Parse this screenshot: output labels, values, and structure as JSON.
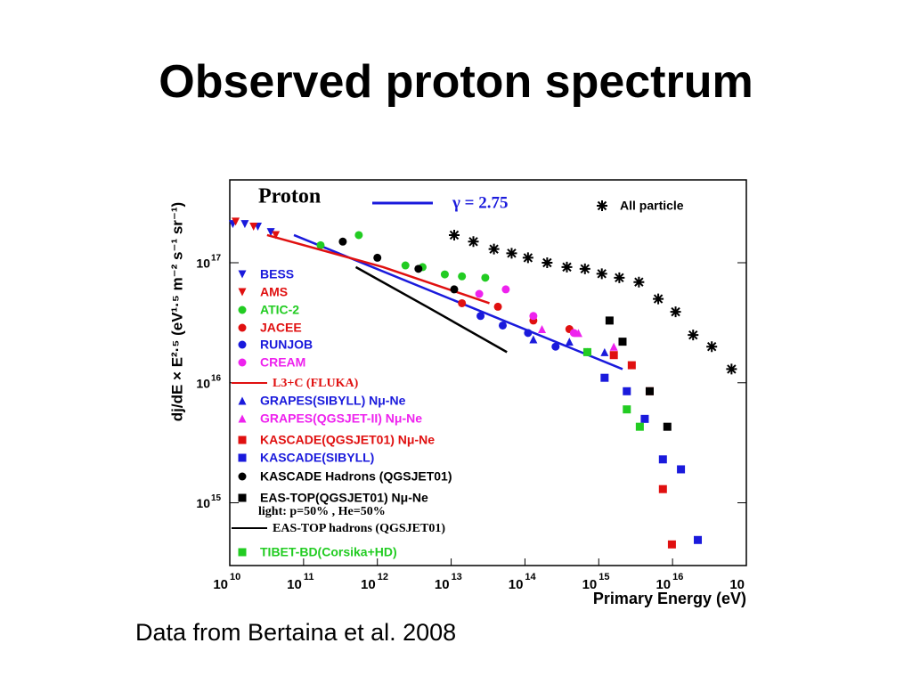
{
  "title": "Observed proton spectrum",
  "caption": "Data from Bertaina et al. 2008",
  "chart_data": {
    "type": "scatter",
    "panel_title": "Proton",
    "xlabel": "Primary Energy (eV)",
    "ylabel": "dj/dE × E²·⁵ (eV¹·⁵ m⁻² s⁻¹ sr⁻¹)",
    "note": "light: p=50% , He=50%",
    "log_x": true,
    "log_y": true,
    "xlim": [
      10000000000.0,
      1e+17
    ],
    "ylim": [
      300000000000000.0,
      4.9e+17
    ],
    "xticks": [
      {
        "value": 10000000000.0,
        "label": "10",
        "exp": "10"
      },
      {
        "value": 100000000000.0,
        "label": "10",
        "exp": "11"
      },
      {
        "value": 1000000000000.0,
        "label": "10",
        "exp": "12"
      },
      {
        "value": 10000000000000.0,
        "label": "10",
        "exp": "13"
      },
      {
        "value": 100000000000000.0,
        "label": "10",
        "exp": "14"
      },
      {
        "value": 1000000000000000.0,
        "label": "10",
        "exp": "15"
      },
      {
        "value": 1e+16,
        "label": "10",
        "exp": "16"
      },
      {
        "value": 1e+17,
        "label": "10"
      }
    ],
    "yticks": [
      {
        "value": 1000000000000000.0,
        "label": "10",
        "exp": "15"
      },
      {
        "value": 1e+16,
        "label": "10",
        "exp": "16"
      },
      {
        "value": 1e+17,
        "label": "10",
        "exp": "17"
      }
    ],
    "series": [
      {
        "name": "γ = 2.75",
        "color": "#1a1adc",
        "marker": "line",
        "x": [
          74000000000.0,
          2100000000000000.0
        ],
        "values": [
          1.7e+17,
          1.3e+16
        ]
      },
      {
        "name": "All particle",
        "color": "#000000",
        "marker": "asterisk",
        "x": [
          11000000000000.0,
          20000000000000.0,
          38000000000000.0,
          66000000000000.0,
          110000000000000.0,
          200000000000000.0,
          370000000000000.0,
          650000000000000.0,
          1100000000000000.0,
          1900000000000000.0,
          3500000000000000.0,
          6400000000000000.0,
          1.1e+16,
          1.9e+16,
          3.4e+16,
          6.3e+16
        ],
        "values": [
          1.7e+17,
          1.5e+17,
          1.3e+17,
          1.2e+17,
          1.1e+17,
          1e+17,
          9.2e+16,
          8.9e+16,
          8.1e+16,
          7.5e+16,
          6.9e+16,
          5e+16,
          3.9e+16,
          2.5e+16,
          2e+16,
          1.3e+16
        ]
      },
      {
        "name": "BESS",
        "color": "#1a1adc",
        "marker": "triangle-down",
        "x": [
          11000000000.0,
          16000000000.0,
          24000000000.0,
          36000000000.0
        ],
        "values": [
          2.1e+17,
          2.1e+17,
          2e+17,
          1.8e+17
        ]
      },
      {
        "name": "AMS",
        "color": "#e01010",
        "marker": "triangle-down",
        "x": [
          12000000000.0,
          21000000000.0,
          42000000000.0
        ],
        "values": [
          2.2e+17,
          2e+17,
          1.7e+17
        ]
      },
      {
        "name": "ATIC-2",
        "color": "#22cc22",
        "marker": "circle",
        "x": [
          170000000000.0,
          560000000000.0,
          2400000000000.0,
          4100000000000.0,
          8200000000000.0,
          14000000000000.0,
          29000000000000.0
        ],
        "values": [
          1.4e+17,
          1.7e+17,
          9.5e+16,
          9.2e+16,
          8e+16,
          7.7e+16,
          7.5e+16
        ]
      },
      {
        "name": "JACEE",
        "color": "#e01010",
        "marker": "circle",
        "x": [
          14000000000000.0,
          43000000000000.0,
          130000000000000.0,
          400000000000000.0
        ],
        "values": [
          4.6e+16,
          4.3e+16,
          3.3e+16,
          2.8e+16
        ]
      },
      {
        "name": "RUNJOB",
        "color": "#1a1adc",
        "marker": "circle",
        "x": [
          25000000000000.0,
          50000000000000.0,
          110000000000000.0,
          260000000000000.0,
          700000000000000.0
        ],
        "values": [
          3.6e+16,
          3e+16,
          2.6e+16,
          2e+16,
          1.8e+16
        ]
      },
      {
        "name": "CREAM",
        "color": "#ee22ee",
        "marker": "circle",
        "x": [
          24000000000000.0,
          55000000000000.0,
          130000000000000.0,
          460000000000000.0
        ],
        "values": [
          5.5e+16,
          6e+16,
          3.6e+16,
          2.6e+16
        ]
      },
      {
        "name": "L3+C (FLUKA)",
        "color": "#e01010",
        "marker": "line",
        "x": [
          32000000000.0,
          1200000000000.0,
          33000000000000.0
        ],
        "values": [
          1.7e+17,
          9.2e+16,
          4.6e+16
        ]
      },
      {
        "name": "GRAPES(SIBYLL) Nμ-Ne",
        "color": "#1a1adc",
        "marker": "triangle-up",
        "x": [
          130000000000000.0,
          400000000000000.0,
          1200000000000000.0
        ],
        "values": [
          2.3e+16,
          2.2e+16,
          1.8e+16
        ]
      },
      {
        "name": "GRAPES(QGSJET-II) Nμ-Ne",
        "color": "#ee22ee",
        "marker": "triangle-up",
        "x": [
          170000000000000.0,
          530000000000000.0,
          1600000000000000.0
        ],
        "values": [
          2.8e+16,
          2.6e+16,
          2e+16
        ]
      },
      {
        "name": "KASCADE(QGSJET01) Nμ-Ne",
        "color": "#e01010",
        "marker": "square",
        "x": [
          1600000000000000.0,
          2800000000000000.0,
          4900000000000000.0,
          7400000000000000.0,
          9800000000000000.0
        ],
        "values": [
          1.7e+16,
          1.4e+16,
          8500000000000000.0,
          1300000000000000.0,
          450000000000000.0
        ]
      },
      {
        "name": "KASCADE(SIBYLL)",
        "color": "#1a1adc",
        "marker": "square",
        "x": [
          1200000000000000.0,
          2400000000000000.0,
          4200000000000000.0,
          7400000000000000.0,
          1.3e+16,
          2.2e+16
        ],
        "values": [
          1.1e+16,
          8500000000000000.0,
          5000000000000000.0,
          2300000000000000.0,
          1900000000000000.0,
          490000000000000.0
        ]
      },
      {
        "name": "KASCADE Hadrons (QGSJET01)",
        "color": "#000000",
        "marker": "circle",
        "x": [
          340000000000.0,
          1000000000000.0,
          3600000000000.0,
          11000000000000.0
        ],
        "values": [
          1.5e+17,
          1.1e+17,
          8.9e+16,
          6e+16
        ]
      },
      {
        "name": "EAS-TOP(QGSJET01) Nμ-Ne",
        "color": "#000000",
        "marker": "square",
        "x": [
          1400000000000000.0,
          2100000000000000.0,
          4900000000000000.0,
          8500000000000000.0
        ],
        "values": [
          3.3e+16,
          2.2e+16,
          8500000000000000.0,
          4300000000000000.0
        ]
      },
      {
        "name": "EAS-TOP hadrons (QGSJET01)",
        "color": "#000000",
        "marker": "line",
        "x": [
          510000000000.0,
          4700000000000.0,
          57000000000000.0
        ],
        "values": [
          9.2e+16,
          4.3e+16,
          1.8e+16
        ]
      },
      {
        "name": "TIBET-BD(Corsika+HD)",
        "color": "#22cc22",
        "marker": "square",
        "x": [
          700000000000000.0,
          2400000000000000.0,
          3600000000000000.0
        ],
        "values": [
          1.8e+16,
          6000000000000000.0,
          4300000000000000.0
        ]
      }
    ]
  }
}
